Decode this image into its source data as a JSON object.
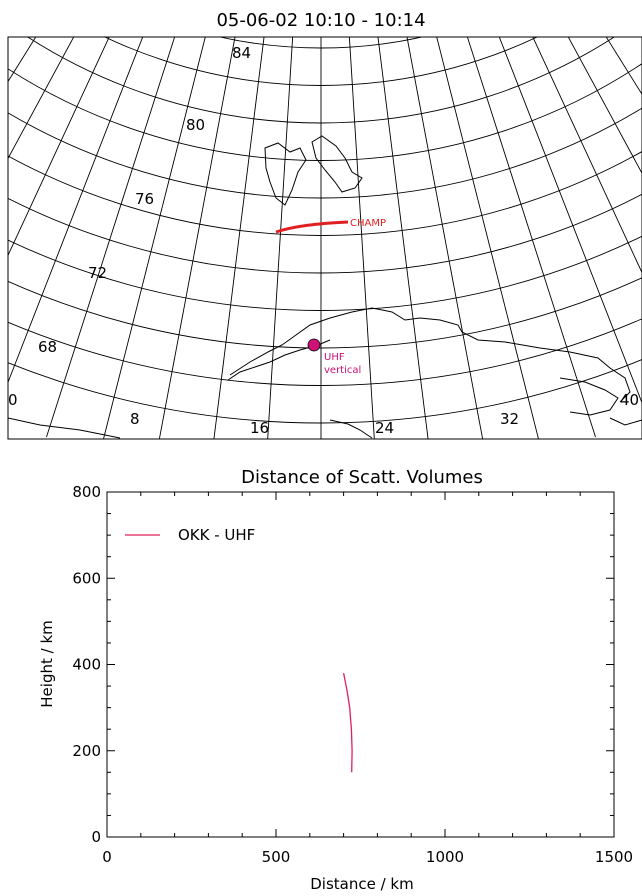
{
  "map": {
    "title": "05-06-02    10:10  -  10:14",
    "lat_labels": [
      "84",
      "80",
      "76",
      "72",
      "68"
    ],
    "lon_labels": [
      "0",
      "8",
      "16",
      "24",
      "32",
      "40"
    ],
    "track_label": "CHAMP",
    "station_label_line1": "UHF",
    "station_label_line2": "vertical",
    "colors": {
      "track": "#e02020",
      "station": "#cc1177",
      "grid": "#000000"
    }
  },
  "chart_data": {
    "type": "line",
    "title": "Distance of Scatt. Volumes",
    "xlabel": "Distance / km",
    "ylabel": "Height / km",
    "xlim": [
      0,
      1500
    ],
    "ylim": [
      0,
      800
    ],
    "x_ticks": [
      0,
      500,
      1000,
      1500
    ],
    "y_ticks": [
      0,
      200,
      400,
      600,
      800
    ],
    "x_tick_labels": [
      "0",
      "500",
      "1000",
      "1500"
    ],
    "y_tick_labels": [
      "0",
      "200",
      "400",
      "600",
      "800"
    ],
    "grid": false,
    "legend_position": "top-left",
    "series": [
      {
        "name": "OKK  -  UHF",
        "color": "#e0205a",
        "x": [
          700,
          710,
          718,
          723,
          725,
          724
        ],
        "y": [
          380,
          340,
          300,
          250,
          200,
          150
        ]
      }
    ]
  }
}
